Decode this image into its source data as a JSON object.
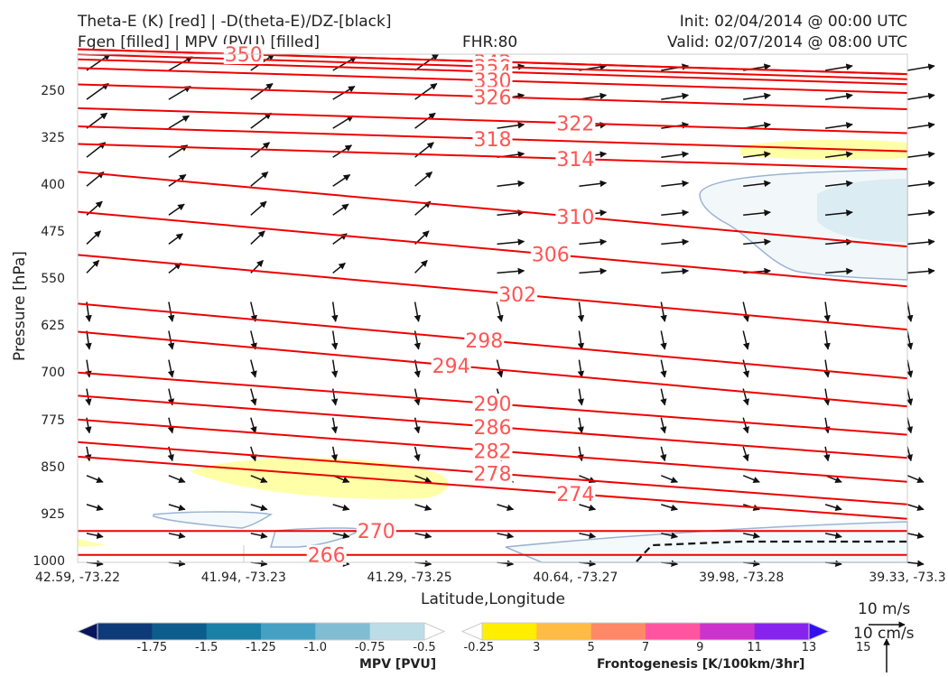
{
  "header": {
    "line1_left": "Theta-E (K) [red] | -D(theta-E)/DZ-[black]",
    "line2_left": "Fgen [filled] | MPV (PVU) [filled]",
    "fhr": "FHR:80",
    "init": "Init: 02/04/2014 @ 00:00 UTC",
    "valid": "Valid: 02/07/2014 @ 08:00 UTC"
  },
  "chart_data": {
    "type": "cross-section",
    "ylabel": "Pressure [hPa]",
    "xlabel": "Latitude,Longitude",
    "y_ticks": [
      "250",
      "325",
      "400",
      "475",
      "550",
      "625",
      "700",
      "775",
      "850",
      "925",
      "1000"
    ],
    "y_tick_values": [
      250,
      325,
      400,
      475,
      550,
      625,
      700,
      775,
      850,
      925,
      1000
    ],
    "ylim": [
      1000,
      190
    ],
    "x_ticks": [
      "42.59, -73.22",
      "41.94, -73.23",
      "41.29, -73.25",
      "40.64, -73.27",
      "39.98, -73.28",
      "39.33, -73.3"
    ],
    "theta_e_contour_labels": [
      {
        "label": "350",
        "p": 190,
        "x": 0.2
      },
      {
        "label": "342",
        "p": 202,
        "x": 0.5
      },
      {
        "label": "338",
        "p": 210,
        "x": 0.5
      },
      {
        "label": "334",
        "p": 218,
        "x": 0.5
      },
      {
        "label": "330",
        "p": 232,
        "x": 0.5
      },
      {
        "label": "326",
        "p": 258,
        "x": 0.5
      },
      {
        "label": "322",
        "p": 300,
        "x": 0.6
      },
      {
        "label": "318",
        "p": 325,
        "x": 0.5
      },
      {
        "label": "314",
        "p": 357,
        "x": 0.6
      },
      {
        "label": "310",
        "p": 449,
        "x": 0.6
      },
      {
        "label": "306",
        "p": 509,
        "x": 0.57
      },
      {
        "label": "302",
        "p": 573,
        "x": 0.53
      },
      {
        "label": "298",
        "p": 646,
        "x": 0.49
      },
      {
        "label": "294",
        "p": 686,
        "x": 0.45
      },
      {
        "label": "290",
        "p": 747,
        "x": 0.5
      },
      {
        "label": "286",
        "p": 784,
        "x": 0.5
      },
      {
        "label": "282",
        "p": 822,
        "x": 0.5
      },
      {
        "label": "278",
        "p": 858,
        "x": 0.5
      },
      {
        "label": "274",
        "p": 891,
        "x": 0.6
      },
      {
        "label": "270",
        "p": 950,
        "x": 0.36
      },
      {
        "label": "266",
        "p": 988,
        "x": 0.3
      }
    ],
    "mpv_colorbar": {
      "title": "MPV [PVU]",
      "ticks": [
        "-1.75",
        "-1.5",
        "-1.25",
        "-1.0",
        "-0.75",
        "-0.5",
        "-0.25"
      ],
      "colors": [
        "#08155e",
        "#0d3b7a",
        "#0d5c8e",
        "#1a80a8",
        "#45a0c4",
        "#80bcd4",
        "#bcdde6",
        "#ffffff"
      ]
    },
    "fgen_colorbar": {
      "title": "Frontogenesis [K/100km/3hr]",
      "ticks": [
        "3",
        "5",
        "7",
        "9",
        "11",
        "13",
        "15"
      ],
      "colors": [
        "#ffffff",
        "#ffee00",
        "#ffbb44",
        "#ff8866",
        "#ff55a0",
        "#cc33cc",
        "#8822ee",
        "#3311ee"
      ]
    },
    "reference_vectors": {
      "horizontal": "10 m/s",
      "vertical": "10 cm/s"
    }
  }
}
